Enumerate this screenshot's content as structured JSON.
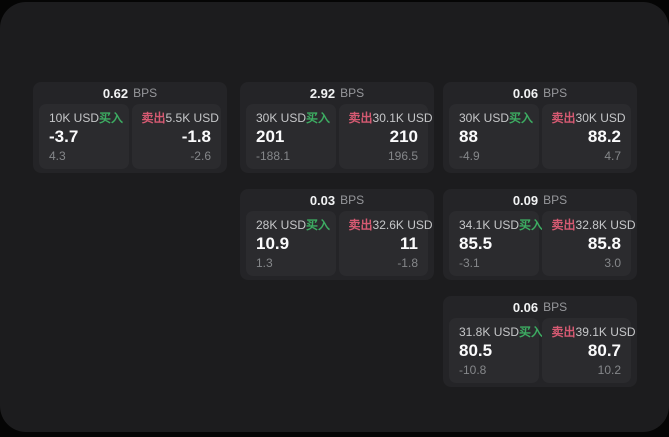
{
  "labels": {
    "bps_suffix": "BPS",
    "buy": "买入",
    "sell": "卖出"
  },
  "colors": {
    "buy_green": "#3dac62",
    "sell_red": "#d65a72",
    "panel_bg": "#1c1c1e",
    "card_bg": "#242427",
    "tile_bg": "#2b2b2e"
  },
  "cards": [
    {
      "bps": "0.62",
      "buy": {
        "amount": "10K USD",
        "value": "-3.7",
        "sub": "4.3"
      },
      "sell": {
        "amount": "5.5K USD",
        "value": "-1.8",
        "sub": "-2.6"
      }
    },
    {
      "bps": "2.92",
      "buy": {
        "amount": "30K USD",
        "value": "201",
        "sub": "-188.1"
      },
      "sell": {
        "amount": "30.1K USD",
        "value": "210",
        "sub": "196.5"
      }
    },
    {
      "bps": "0.06",
      "buy": {
        "amount": "30K USD",
        "value": "88",
        "sub": "-4.9"
      },
      "sell": {
        "amount": "30K USD",
        "value": "88.2",
        "sub": "4.7"
      }
    },
    {
      "bps": "0.03",
      "buy": {
        "amount": "28K USD",
        "value": "10.9",
        "sub": "1.3"
      },
      "sell": {
        "amount": "32.6K USD",
        "value": "11",
        "sub": "-1.8"
      }
    },
    {
      "bps": "0.09",
      "buy": {
        "amount": "34.1K USD",
        "value": "85.5",
        "sub": "-3.1"
      },
      "sell": {
        "amount": "32.8K USD",
        "value": "85.8",
        "sub": "3.0"
      }
    },
    {
      "bps": "0.06",
      "buy": {
        "amount": "31.8K USD",
        "value": "80.5",
        "sub": "-10.8"
      },
      "sell": {
        "amount": "39.1K USD",
        "value": "80.7",
        "sub": "10.2"
      }
    }
  ]
}
